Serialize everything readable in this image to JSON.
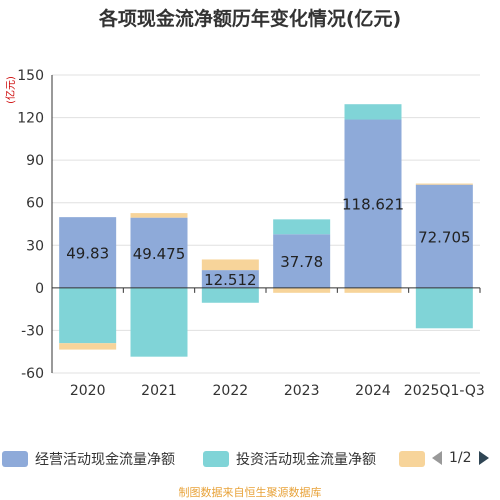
{
  "title": "各项现金流净额历年变化情况(亿元)",
  "source": "制图数据来自恒生聚源数据库",
  "pager": "1/2",
  "colors": {
    "operating": "#8eaad9",
    "investing": "#80d4d7",
    "financing": "#f7d49a",
    "grid": "#e0e0e0",
    "axis": "#333333"
  },
  "chart_data": {
    "type": "bar",
    "stacked": true,
    "title": "各项现金流净额历年变化情况(亿元)",
    "ylabel": "(亿元)",
    "ylim": [
      -60,
      150
    ],
    "yticks": [
      150,
      120,
      90,
      60,
      30,
      0,
      -30,
      -60
    ],
    "categories": [
      "2020",
      "2021",
      "2022",
      "2023",
      "2024",
      "2025Q1-Q3"
    ],
    "legend_position": "bottom",
    "series": [
      {
        "name": "经营活动现金流量净额",
        "color": "#8eaad9",
        "values": [
          49.83,
          49.475,
          12.512,
          37.78,
          118.621,
          72.705
        ],
        "data_labels": [
          "49.83",
          "49.475",
          "12.512",
          "37.78",
          "118.621",
          "72.705"
        ]
      },
      {
        "name": "投资活动现金流量净额",
        "color": "#80d4d7",
        "values": [
          -39,
          -48.5,
          -10.5,
          10.5,
          10.8,
          -28.5
        ]
      },
      {
        "name": "",
        "color": "#f7d49a",
        "values": [
          -4.5,
          3.2,
          7.5,
          -3.5,
          -3.5,
          0.8
        ]
      }
    ]
  }
}
